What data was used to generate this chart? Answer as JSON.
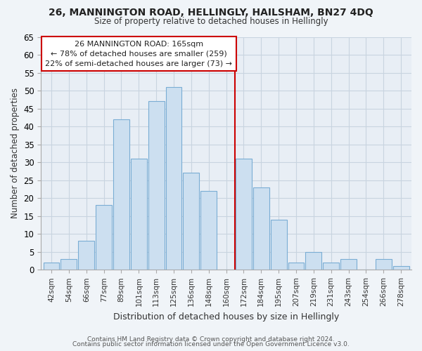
{
  "title": "26, MANNINGTON ROAD, HELLINGLY, HAILSHAM, BN27 4DQ",
  "subtitle": "Size of property relative to detached houses in Hellingly",
  "xlabel": "Distribution of detached houses by size in Hellingly",
  "ylabel": "Number of detached properties",
  "bar_labels": [
    "42sqm",
    "54sqm",
    "66sqm",
    "77sqm",
    "89sqm",
    "101sqm",
    "113sqm",
    "125sqm",
    "136sqm",
    "148sqm",
    "160sqm",
    "172sqm",
    "184sqm",
    "195sqm",
    "207sqm",
    "219sqm",
    "231sqm",
    "243sqm",
    "254sqm",
    "266sqm",
    "278sqm"
  ],
  "bar_values": [
    2,
    3,
    8,
    18,
    42,
    31,
    47,
    51,
    27,
    22,
    0,
    31,
    23,
    14,
    2,
    5,
    2,
    3,
    0,
    3,
    1
  ],
  "bar_color": "#ccdff0",
  "bar_edge_color": "#7aadd4",
  "reference_line_color": "#cc0000",
  "annotation_title": "26 MANNINGTON ROAD: 165sqm",
  "annotation_line1": "← 78% of detached houses are smaller (259)",
  "annotation_line2": "22% of semi-detached houses are larger (73) →",
  "annotation_box_color": "#ffffff",
  "annotation_box_edge_color": "#cc0000",
  "ylim": [
    0,
    65
  ],
  "yticks": [
    0,
    5,
    10,
    15,
    20,
    25,
    30,
    35,
    40,
    45,
    50,
    55,
    60,
    65
  ],
  "footer_line1": "Contains HM Land Registry data © Crown copyright and database right 2024.",
  "footer_line2": "Contains public sector information licensed under the Open Government Licence v3.0.",
  "background_color": "#f0f4f8",
  "plot_bg_color": "#e8eef5",
  "grid_color": "#c8d4e0",
  "spine_color": "#aaaaaa"
}
